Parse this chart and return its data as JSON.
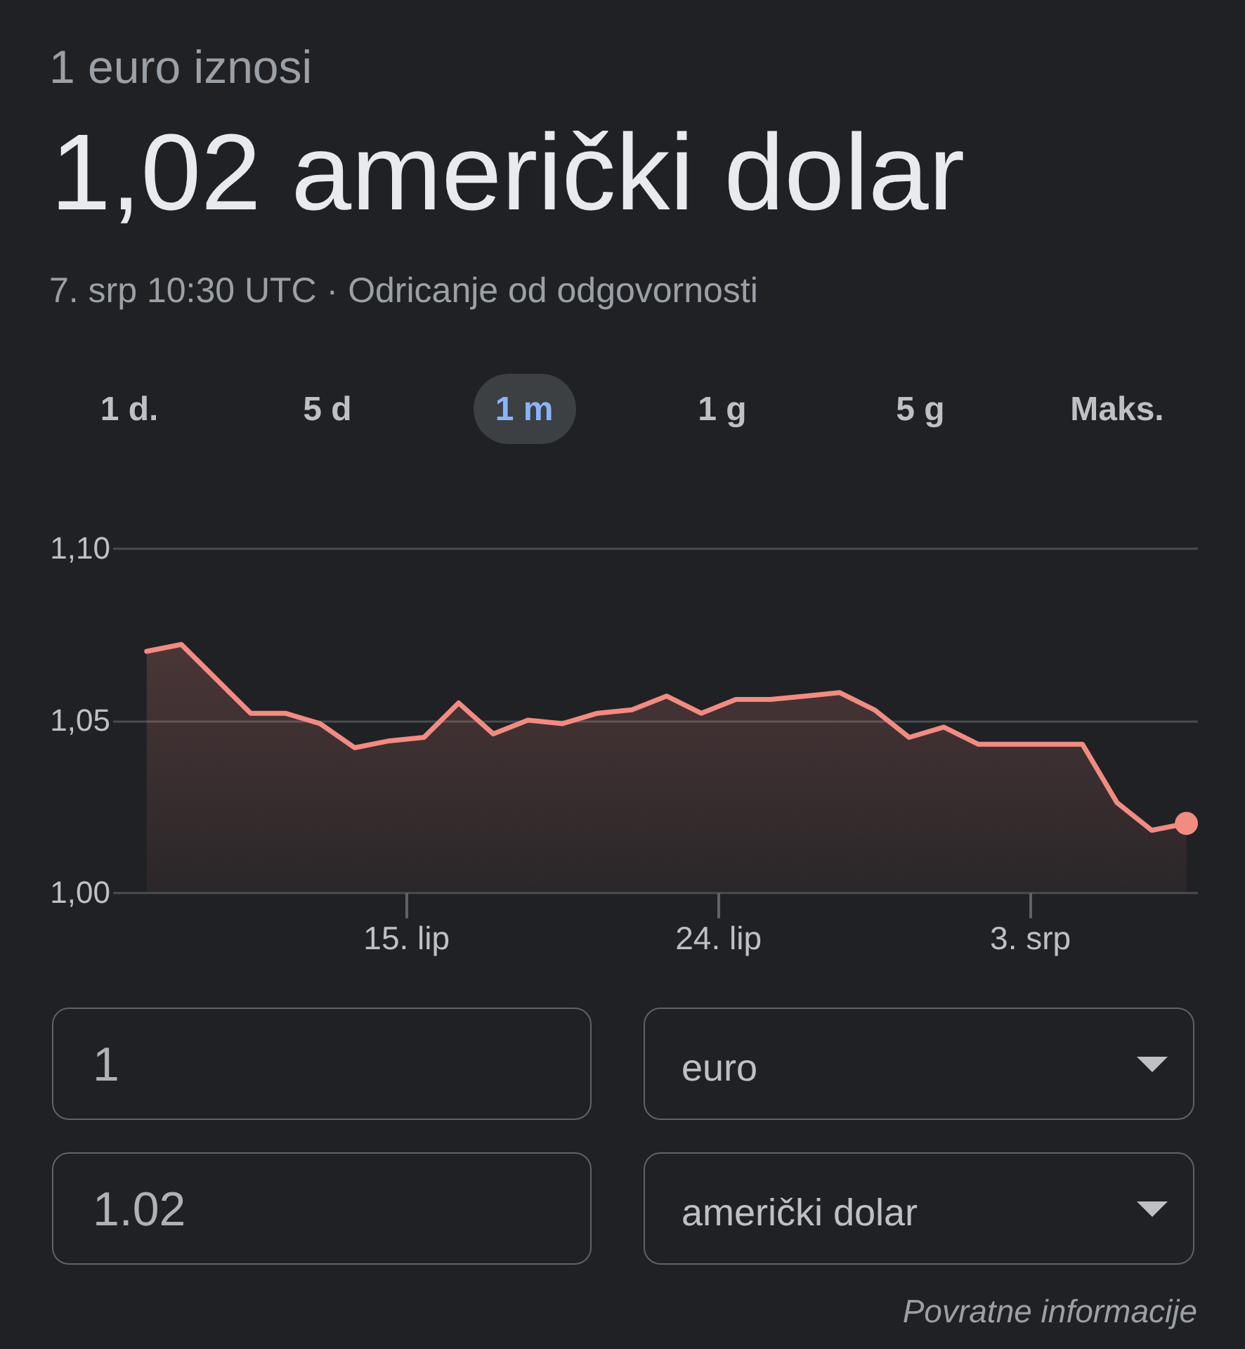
{
  "chart_data": {
    "type": "area",
    "title": "1,02 američki dolar",
    "subtitle": "7. srp 10:30 UTC · Odricanje od odgovornosti",
    "annotations": [
      "1 euro iznosi",
      "1 d.",
      "5 d",
      "1 m",
      "1 g",
      "5 g",
      "Maks.",
      "1",
      "euro",
      "1.02",
      "američki dolar",
      "Povratne informacije"
    ],
    "x": [
      "--06-07T12:30",
      "--06-08T12:30",
      "--06-09T12:30",
      "--06-10T12:30",
      "--06-11T12:30",
      "--06-12T12:30",
      "--06-13T12:30",
      "--06-14T12:30",
      "--06-15T12:30",
      "--06-16T12:30",
      "--06-17T12:30",
      "--06-18T12:30",
      "--06-19T12:30",
      "--06-20T12:30",
      "--06-21T12:30",
      "--06-22T12:30",
      "--06-23T12:30",
      "--06-24T12:30",
      "--06-25T12:30",
      "--06-26T12:30",
      "--06-27T12:30",
      "--06-28T12:30",
      "--06-29T12:30",
      "--06-30T12:30",
      "--07-01T12:30",
      "--07-02T12:30",
      "--07-03T12:30",
      "--07-04T12:30",
      "--07-05T12:30",
      "--07-06T12:30",
      "--07-07T12:30"
    ],
    "series": [
      {
        "color": "#f28b82",
        "values": [
          1.07,
          1.072,
          1.062,
          1.052,
          1.052,
          1.049,
          1.042,
          1.044,
          1.045,
          1.055,
          1.046,
          1.05,
          1.049,
          1.052,
          1.053,
          1.057,
          1.052,
          1.056,
          1.056,
          1.057,
          1.058,
          1.053,
          1.045,
          1.048,
          1.043,
          1.043,
          1.043,
          1.043,
          1.026,
          1.018,
          1.02
        ]
      },
      {
        "type": "scatter",
        "marker": "circle",
        "color": "#f28b82",
        "x": [
          "--07-07T12:30"
        ],
        "values": [
          1.02
        ]
      }
    ],
    "xlim": [
      "--06-06T12:45",
      "--07-07T20:00"
    ],
    "xticks": [
      {
        "value": "--06-15",
        "label": "15. lip"
      },
      {
        "value": "--06-24",
        "label": "24. lip"
      },
      {
        "value": "--07-03",
        "label": "3. srp"
      }
    ],
    "ylim": [
      1.0,
      1.1
    ],
    "yticks": [
      {
        "value": 1.0,
        "label": "1,00"
      },
      {
        "value": 1.05,
        "label": "1,05"
      },
      {
        "value": 1.1,
        "label": "1,10"
      }
    ],
    "grid": "y"
  }
}
